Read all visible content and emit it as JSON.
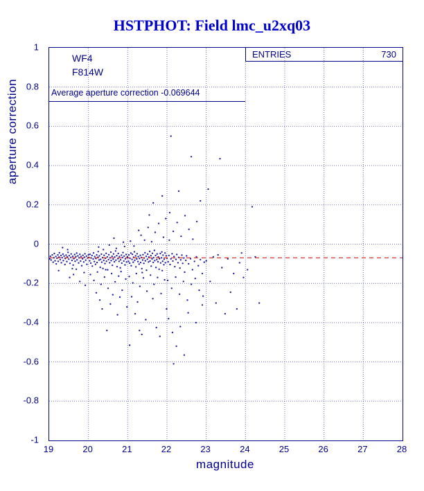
{
  "title": "HSTPHOT: Field lmc_u2xq03",
  "stats_box": {
    "label": "ENTRIES",
    "value": "730"
  },
  "annotations": {
    "camera": "WF4",
    "filter": "F814W",
    "average_text": "Average aperture correction -0.069644"
  },
  "colors": {
    "title": "#0000CC",
    "axis": "#00008B",
    "grid": "#00008B",
    "points": "#00008B",
    "reference_line": "#CC0000"
  },
  "chart_data": {
    "type": "scatter",
    "title": "HSTPHOT: Field lmc_u2xq03",
    "xlabel": "magnitude",
    "ylabel": "aperture correction",
    "xlim": [
      19,
      28
    ],
    "ylim": [
      -1,
      1
    ],
    "grid": true,
    "entries": 730,
    "x_ticks": [
      19,
      20,
      21,
      22,
      23,
      24,
      25,
      26,
      27,
      28
    ],
    "x_tick_labels": [
      "19",
      "20",
      "21",
      "22",
      "23",
      "24",
      "25",
      "26",
      "27",
      "28"
    ],
    "y_ticks": [
      1,
      0.8,
      0.6,
      0.4,
      0.2,
      0,
      -0.2,
      -0.4,
      -0.6,
      -0.8,
      -1
    ],
    "y_tick_labels": [
      "1",
      "0.8",
      "0.6",
      "0.4",
      "0.2",
      "0",
      "-0.2",
      "-0.4",
      "-0.6",
      "-0.8",
      "-1"
    ],
    "reference_line": {
      "y": -0.069644,
      "color": "#CC0000",
      "style": "dashed"
    },
    "points": [
      [
        19.01,
        -0.075
      ],
      [
        19.03,
        -0.062
      ],
      [
        19.05,
        -0.081
      ],
      [
        19.08,
        -0.055
      ],
      [
        19.1,
        -0.092
      ],
      [
        19.12,
        -0.07
      ],
      [
        19.13,
        -0.048
      ],
      [
        19.15,
        -0.085
      ],
      [
        19.17,
        -0.063
      ],
      [
        19.18,
        -0.101
      ],
      [
        19.2,
        -0.072
      ],
      [
        19.22,
        -0.055
      ],
      [
        19.23,
        -0.088
      ],
      [
        19.25,
        -0.066
      ],
      [
        19.26,
        -0.044
      ],
      [
        19.28,
        -0.079
      ],
      [
        19.3,
        -0.058
      ],
      [
        19.31,
        -0.095
      ],
      [
        19.33,
        -0.069
      ],
      [
        19.35,
        -0.051
      ],
      [
        19.36,
        -0.084
      ],
      [
        19.38,
        -0.061
      ],
      [
        19.4,
        -0.104
      ],
      [
        19.41,
        -0.073
      ],
      [
        19.43,
        -0.056
      ],
      [
        19.45,
        -0.089
      ],
      [
        19.46,
        -0.065
      ],
      [
        19.48,
        -0.042
      ],
      [
        19.5,
        -0.077
      ],
      [
        19.51,
        -0.059
      ],
      [
        19.53,
        -0.098
      ],
      [
        19.55,
        -0.068
      ],
      [
        19.56,
        -0.05
      ],
      [
        19.58,
        -0.083
      ],
      [
        19.6,
        -0.062
      ],
      [
        19.61,
        -0.107
      ],
      [
        19.63,
        -0.074
      ],
      [
        19.65,
        -0.053
      ],
      [
        19.66,
        -0.087
      ],
      [
        19.68,
        -0.064
      ],
      [
        19.7,
        -0.046
      ],
      [
        19.71,
        -0.08
      ],
      [
        19.73,
        -0.06
      ],
      [
        19.75,
        -0.096
      ],
      [
        19.76,
        -0.07
      ],
      [
        19.78,
        -0.052
      ],
      [
        19.8,
        -0.086
      ],
      [
        19.81,
        -0.063
      ],
      [
        19.83,
        -0.11
      ],
      [
        19.85,
        -0.075
      ],
      [
        19.86,
        -0.057
      ],
      [
        19.88,
        -0.091
      ],
      [
        19.9,
        -0.067
      ],
      [
        19.91,
        -0.049
      ],
      [
        19.93,
        -0.082
      ],
      [
        19.95,
        -0.061
      ],
      [
        19.96,
        -0.103
      ],
      [
        19.98,
        -0.071
      ],
      [
        20.0,
        -0.054
      ],
      [
        19.24,
        -0.135
      ],
      [
        19.47,
        -0.028
      ],
      [
        19.69,
        -0.128
      ],
      [
        19.89,
        -0.145
      ],
      [
        19.34,
        -0.018
      ],
      [
        19.59,
        -0.125
      ],
      [
        19.52,
        -0.17
      ],
      [
        19.78,
        -0.19
      ],
      [
        19.92,
        -0.21
      ],
      [
        19.62,
        -0.155
      ],
      [
        20.01,
        -0.068
      ],
      [
        20.03,
        -0.085
      ],
      [
        20.04,
        -0.052
      ],
      [
        20.06,
        -0.097
      ],
      [
        20.07,
        -0.071
      ],
      [
        20.09,
        -0.058
      ],
      [
        20.1,
        -0.112
      ],
      [
        20.12,
        -0.076
      ],
      [
        20.13,
        -0.045
      ],
      [
        20.15,
        -0.089
      ],
      [
        20.16,
        -0.064
      ],
      [
        20.18,
        -0.103
      ],
      [
        20.19,
        -0.073
      ],
      [
        20.21,
        -0.055
      ],
      [
        20.22,
        -0.094
      ],
      [
        20.24,
        -0.067
      ],
      [
        20.25,
        -0.038
      ],
      [
        20.27,
        -0.081
      ],
      [
        20.28,
        -0.06
      ],
      [
        20.3,
        -0.118
      ],
      [
        20.31,
        -0.078
      ],
      [
        20.33,
        -0.051
      ],
      [
        20.34,
        -0.092
      ],
      [
        20.36,
        -0.069
      ],
      [
        20.37,
        -0.124
      ],
      [
        20.39,
        -0.083
      ],
      [
        20.4,
        -0.057
      ],
      [
        20.42,
        -0.099
      ],
      [
        20.43,
        -0.072
      ],
      [
        20.45,
        -0.047
      ],
      [
        20.46,
        -0.087
      ],
      [
        20.48,
        -0.065
      ],
      [
        20.49,
        -0.131
      ],
      [
        20.51,
        -0.079
      ],
      [
        20.52,
        -0.054
      ],
      [
        20.54,
        -0.095
      ],
      [
        20.55,
        -0.07
      ],
      [
        20.57,
        -0.041
      ],
      [
        20.58,
        -0.084
      ],
      [
        20.6,
        -0.062
      ],
      [
        20.61,
        -0.108
      ],
      [
        20.63,
        -0.077
      ],
      [
        20.64,
        -0.05
      ],
      [
        20.66,
        -0.09
      ],
      [
        20.67,
        -0.066
      ],
      [
        20.69,
        -0.035
      ],
      [
        20.7,
        -0.082
      ],
      [
        20.72,
        -0.059
      ],
      [
        20.73,
        -0.115
      ],
      [
        20.75,
        -0.074
      ],
      [
        20.76,
        -0.048
      ],
      [
        20.78,
        -0.088
      ],
      [
        20.79,
        -0.063
      ],
      [
        20.81,
        -0.121
      ],
      [
        20.82,
        -0.08
      ],
      [
        20.84,
        -0.056
      ],
      [
        20.85,
        -0.097
      ],
      [
        20.87,
        -0.068
      ],
      [
        20.88,
        -0.043
      ],
      [
        20.9,
        -0.086
      ],
      [
        20.91,
        -0.061
      ],
      [
        20.93,
        -0.106
      ],
      [
        20.94,
        -0.075
      ],
      [
        20.96,
        -0.053
      ],
      [
        20.97,
        -0.091
      ],
      [
        20.99,
        -0.065
      ],
      [
        20.05,
        -0.155
      ],
      [
        20.14,
        -0.185
      ],
      [
        20.23,
        -0.142
      ],
      [
        20.32,
        -0.205
      ],
      [
        20.41,
        -0.168
      ],
      [
        20.5,
        -0.225
      ],
      [
        20.59,
        -0.15
      ],
      [
        20.68,
        -0.192
      ],
      [
        20.77,
        -0.163
      ],
      [
        20.86,
        -0.235
      ],
      [
        20.95,
        -0.178
      ],
      [
        20.2,
        -0.248
      ],
      [
        20.44,
        -0.13
      ],
      [
        20.62,
        -0.258
      ],
      [
        20.83,
        -0.14
      ],
      [
        20.26,
        -0.015
      ],
      [
        20.53,
        -0.005
      ],
      [
        20.71,
        -0.022
      ],
      [
        20.89,
        0.01
      ],
      [
        20.38,
        -0.028
      ],
      [
        20.92,
        -0.012
      ],
      [
        20.65,
        0.03
      ],
      [
        20.35,
        -0.33
      ],
      [
        20.56,
        -0.305
      ],
      [
        20.74,
        -0.36
      ],
      [
        20.47,
        -0.44
      ],
      [
        20.98,
        -0.32
      ],
      [
        20.29,
        -0.285
      ],
      [
        20.8,
        -0.27
      ],
      [
        21.0,
        -0.07
      ],
      [
        21.02,
        -0.088
      ],
      [
        21.03,
        -0.055
      ],
      [
        21.05,
        -0.097
      ],
      [
        21.06,
        -0.072
      ],
      [
        21.08,
        -0.046
      ],
      [
        21.09,
        -0.11
      ],
      [
        21.11,
        -0.078
      ],
      [
        21.12,
        -0.052
      ],
      [
        21.14,
        -0.092
      ],
      [
        21.15,
        -0.067
      ],
      [
        21.17,
        -0.039
      ],
      [
        21.18,
        -0.083
      ],
      [
        21.2,
        -0.06
      ],
      [
        21.21,
        -0.116
      ],
      [
        21.23,
        -0.076
      ],
      [
        21.24,
        -0.049
      ],
      [
        21.26,
        -0.089
      ],
      [
        21.27,
        -0.064
      ],
      [
        21.29,
        -0.102
      ],
      [
        21.3,
        -0.073
      ],
      [
        21.32,
        -0.057
      ],
      [
        21.33,
        -0.094
      ],
      [
        21.35,
        -0.068
      ],
      [
        21.36,
        -0.125
      ],
      [
        21.38,
        -0.081
      ],
      [
        21.39,
        -0.054
      ],
      [
        21.41,
        -0.098
      ],
      [
        21.42,
        -0.071
      ],
      [
        21.44,
        -0.044
      ],
      [
        21.45,
        -0.085
      ],
      [
        21.47,
        -0.062
      ],
      [
        21.48,
        -0.133
      ],
      [
        21.5,
        -0.077
      ],
      [
        21.51,
        -0.051
      ],
      [
        21.53,
        -0.091
      ],
      [
        21.54,
        -0.066
      ],
      [
        21.56,
        -0.037
      ],
      [
        21.57,
        -0.086
      ],
      [
        21.59,
        -0.059
      ],
      [
        21.6,
        -0.112
      ],
      [
        21.62,
        -0.075
      ],
      [
        21.63,
        -0.047
      ],
      [
        21.65,
        -0.093
      ],
      [
        21.66,
        -0.069
      ],
      [
        21.68,
        -0.032
      ],
      [
        21.69,
        -0.084
      ],
      [
        21.71,
        -0.058
      ],
      [
        21.72,
        -0.119
      ],
      [
        21.74,
        -0.079
      ],
      [
        21.75,
        -0.05
      ],
      [
        21.77,
        -0.09
      ],
      [
        21.78,
        -0.065
      ],
      [
        21.8,
        -0.128
      ],
      [
        21.81,
        -0.074
      ],
      [
        21.83,
        -0.048
      ],
      [
        21.84,
        -0.096
      ],
      [
        21.86,
        -0.07
      ],
      [
        21.87,
        -0.04
      ],
      [
        21.89,
        -0.087
      ],
      [
        21.9,
        -0.056
      ],
      [
        21.92,
        -0.105
      ],
      [
        21.93,
        -0.077
      ],
      [
        21.95,
        -0.045
      ],
      [
        21.96,
        -0.095
      ],
      [
        21.98,
        -0.06
      ],
      [
        21.04,
        -0.165
      ],
      [
        21.13,
        -0.198
      ],
      [
        21.22,
        -0.15
      ],
      [
        21.31,
        -0.215
      ],
      [
        21.4,
        -0.172
      ],
      [
        21.49,
        -0.24
      ],
      [
        21.58,
        -0.158
      ],
      [
        21.67,
        -0.205
      ],
      [
        21.76,
        -0.17
      ],
      [
        21.85,
        -0.252
      ],
      [
        21.94,
        -0.182
      ],
      [
        21.1,
        -0.268
      ],
      [
        21.37,
        -0.145
      ],
      [
        21.64,
        -0.278
      ],
      [
        21.88,
        -0.135
      ],
      [
        21.25,
        -0.295
      ],
      [
        21.07,
        0.015
      ],
      [
        21.16,
        -0.01
      ],
      [
        21.34,
        0.045
      ],
      [
        21.43,
        0.02
      ],
      [
        21.52,
        0.085
      ],
      [
        21.61,
        0.012
      ],
      [
        21.7,
        0.06
      ],
      [
        21.79,
        0.105
      ],
      [
        21.91,
        0.035
      ],
      [
        21.97,
        0.13
      ],
      [
        21.28,
        0.07
      ],
      [
        21.55,
        0.148
      ],
      [
        21.19,
        -0.355
      ],
      [
        21.46,
        -0.385
      ],
      [
        21.73,
        -0.425
      ],
      [
        21.82,
        -0.47
      ],
      [
        21.99,
        -0.33
      ],
      [
        21.36,
        -0.46
      ],
      [
        21.05,
        -0.515
      ],
      [
        21.3,
        -0.44
      ],
      [
        21.65,
        0.21
      ],
      [
        21.88,
        0.245
      ],
      [
        22.0,
        -0.072
      ],
      [
        22.03,
        -0.09
      ],
      [
        22.05,
        -0.058
      ],
      [
        22.08,
        -0.104
      ],
      [
        22.1,
        -0.075
      ],
      [
        22.13,
        -0.049
      ],
      [
        22.15,
        -0.086
      ],
      [
        22.18,
        -0.063
      ],
      [
        22.2,
        -0.115
      ],
      [
        22.23,
        -0.078
      ],
      [
        22.25,
        -0.053
      ],
      [
        22.28,
        -0.095
      ],
      [
        22.3,
        -0.068
      ],
      [
        22.33,
        -0.122
      ],
      [
        22.35,
        -0.08
      ],
      [
        22.38,
        -0.056
      ],
      [
        22.4,
        -0.098
      ],
      [
        22.43,
        -0.071
      ],
      [
        22.45,
        -0.143
      ],
      [
        22.48,
        -0.083
      ],
      [
        22.5,
        -0.06
      ],
      [
        22.55,
        -0.1
      ],
      [
        22.6,
        -0.074
      ],
      [
        22.65,
        -0.13
      ],
      [
        22.7,
        -0.088
      ],
      [
        22.75,
        -0.065
      ],
      [
        22.8,
        -0.11
      ],
      [
        22.85,
        -0.079
      ],
      [
        22.9,
        -0.15
      ],
      [
        22.95,
        -0.092
      ],
      [
        22.02,
        -0.185
      ],
      [
        22.12,
        -0.225
      ],
      [
        22.22,
        -0.168
      ],
      [
        22.32,
        -0.255
      ],
      [
        22.42,
        -0.19
      ],
      [
        22.52,
        -0.285
      ],
      [
        22.62,
        -0.205
      ],
      [
        22.72,
        -0.175
      ],
      [
        22.82,
        -0.235
      ],
      [
        22.92,
        -0.265
      ],
      [
        22.06,
        0.02
      ],
      [
        22.16,
        0.065
      ],
      [
        22.26,
        0.11
      ],
      [
        22.36,
        0.04
      ],
      [
        22.46,
        0.145
      ],
      [
        22.56,
        0.075
      ],
      [
        22.66,
        0.025
      ],
      [
        22.76,
        0.115
      ],
      [
        22.07,
        0.16
      ],
      [
        22.04,
        -0.38
      ],
      [
        22.14,
        -0.45
      ],
      [
        22.24,
        -0.52
      ],
      [
        22.17,
        -0.61
      ],
      [
        22.34,
        -0.42
      ],
      [
        22.54,
        -0.35
      ],
      [
        22.74,
        -0.4
      ],
      [
        22.44,
        -0.565
      ],
      [
        22.9,
        -0.31
      ],
      [
        22.1,
        0.55
      ],
      [
        22.62,
        0.445
      ],
      [
        22.3,
        0.27
      ],
      [
        22.85,
        0.22
      ],
      [
        23.0,
        -0.085
      ],
      [
        23.05,
        0.28
      ],
      [
        23.1,
        -0.19
      ],
      [
        23.18,
        -0.065
      ],
      [
        23.25,
        -0.3
      ],
      [
        23.35,
        0.435
      ],
      [
        23.4,
        -0.12
      ],
      [
        23.48,
        -0.355
      ],
      [
        23.55,
        -0.075
      ],
      [
        23.62,
        -0.245
      ],
      [
        23.7,
        -0.15
      ],
      [
        23.78,
        -0.33
      ],
      [
        23.85,
        -0.095
      ],
      [
        23.95,
        -0.17
      ],
      [
        24.05,
        -0.13
      ],
      [
        24.17,
        0.19
      ],
      [
        24.25,
        -0.065
      ],
      [
        24.35,
        -0.3
      ],
      [
        23.3,
        -0.055
      ],
      [
        23.9,
        -0.045
      ]
    ]
  }
}
